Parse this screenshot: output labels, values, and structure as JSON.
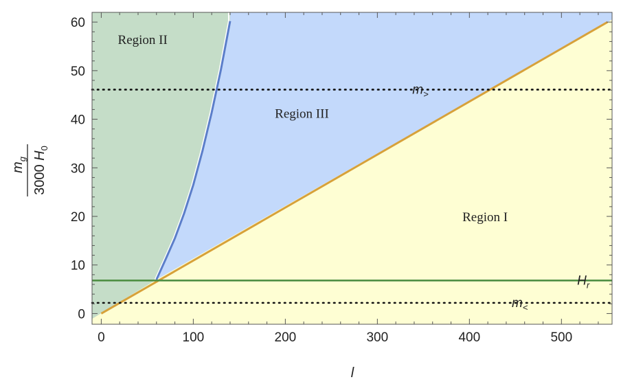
{
  "chart_data": {
    "type": "area",
    "xlabel": "l",
    "ylabel": {
      "numerator_main": "m",
      "numerator_sub": "g",
      "denominator_coef": "3000",
      "denominator_main": "H",
      "denominator_sub": "0"
    },
    "xlim": [
      -10,
      555
    ],
    "ylim": [
      -2.2,
      62
    ],
    "x_ticks": [
      0,
      100,
      200,
      300,
      400,
      500
    ],
    "y_ticks": [
      0,
      10,
      20,
      30,
      40,
      50,
      60
    ],
    "colors": {
      "region_I": "#fefed3",
      "region_II": "#c5ddc8",
      "region_III": "#c3d9fb",
      "boundary_linear": "#d7a13a",
      "boundary_curve": "#5b7ec9",
      "H_r_line": "#4f8f44",
      "dotted": "#111111"
    },
    "regions": [
      {
        "label": "Region I",
        "at": [
          417,
          19
        ]
      },
      {
        "label": "Region II",
        "at": [
          45,
          55.5
        ]
      },
      {
        "label": "Region III",
        "at": [
          218,
          40.3
        ]
      }
    ],
    "boundaries": {
      "linear": [
        [
          0,
          0
        ],
        [
          550,
          60
        ]
      ],
      "curve": [
        [
          60,
          7
        ],
        [
          70,
          11.2
        ],
        [
          80,
          15.5
        ],
        [
          90,
          20.6
        ],
        [
          100,
          26.5
        ],
        [
          110,
          33.5
        ],
        [
          120,
          41.4
        ],
        [
          130,
          50.2
        ],
        [
          140,
          60.2
        ]
      ]
    },
    "horizontal_lines": [
      {
        "name": "H",
        "sub": "r",
        "y": 6.8,
        "style": "solid",
        "label_x": 517
      },
      {
        "name": "m",
        "sub": "&gt;",
        "y": 46.1,
        "style": "dotted",
        "label_x": 338
      },
      {
        "name": "m",
        "sub": "&lt;",
        "y": 2.2,
        "style": "dotted",
        "label_x": 446
      }
    ]
  }
}
